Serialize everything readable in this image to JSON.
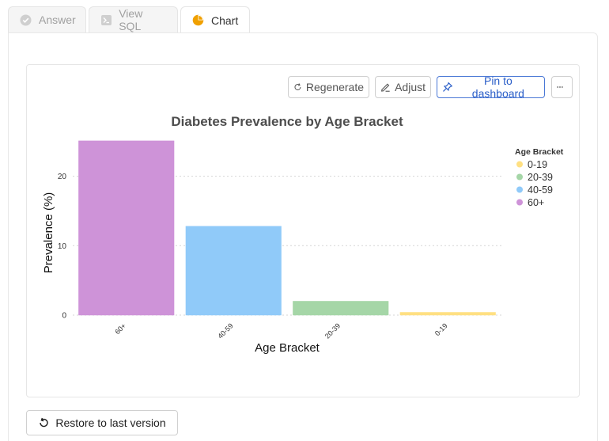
{
  "tabs": [
    {
      "label": "Answer",
      "icon": "check-circle-icon",
      "active": false
    },
    {
      "label": "View SQL",
      "icon": "terminal-icon",
      "active": false
    },
    {
      "label": "Chart",
      "icon": "pie-chart-icon",
      "active": true
    }
  ],
  "toolbar": {
    "regenerate_label": "Regenerate",
    "adjust_label": "Adjust",
    "pin_label": "Pin to dashboard",
    "more_icon": "more-horizontal-icon"
  },
  "restore_label": "Restore to last version",
  "colors": {
    "accent": "#2a5ec8",
    "tab_chart_icon": "#f0a000"
  },
  "chart_data": {
    "type": "bar",
    "title": "Diabetes Prevalence by Age Bracket",
    "xlabel": "Age Bracket",
    "ylabel": "Prevalence (%)",
    "categories": [
      "60+",
      "40-59",
      "20-39",
      "0-19"
    ],
    "values": [
      25.1,
      12.8,
      2.0,
      0.4
    ],
    "colors": [
      "#ce93d8",
      "#90caf9",
      "#a5d6a7",
      "#ffe082"
    ],
    "ylim": [
      0,
      26
    ],
    "yticks": [
      0,
      10,
      20
    ],
    "grid": true,
    "legend": {
      "title": "Age Bracket",
      "placement": "right",
      "items": [
        {
          "label": "0-19",
          "color": "#ffe082"
        },
        {
          "label": "20-39",
          "color": "#a5d6a7"
        },
        {
          "label": "40-59",
          "color": "#90caf9"
        },
        {
          "label": "60+",
          "color": "#ce93d8"
        }
      ]
    }
  }
}
